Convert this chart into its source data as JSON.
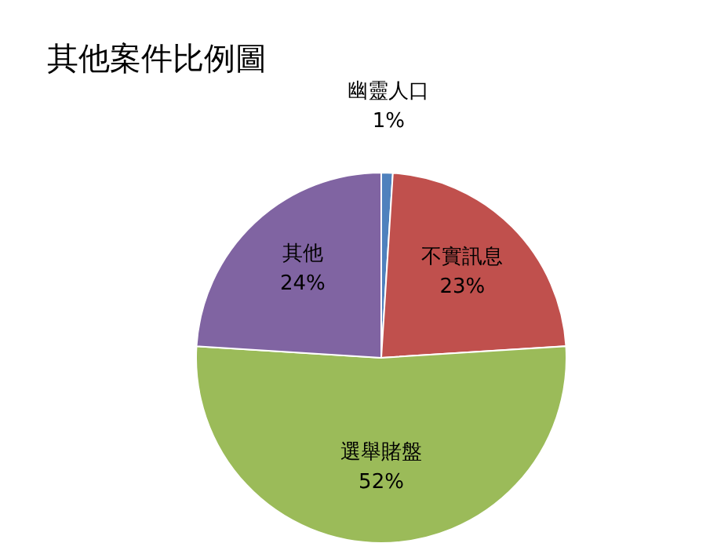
{
  "chart_data": {
    "type": "pie",
    "title": "其他案件比例圖",
    "categories": [
      "幽靈人口",
      "不實訊息",
      "選舉賭盤",
      "其他"
    ],
    "values": [
      1,
      23,
      52,
      24
    ],
    "value_labels": [
      "1%",
      "23%",
      "52%",
      "24%"
    ],
    "colors": [
      "#4f81bd",
      "#c0504d",
      "#9bbb59",
      "#8064a2"
    ]
  }
}
